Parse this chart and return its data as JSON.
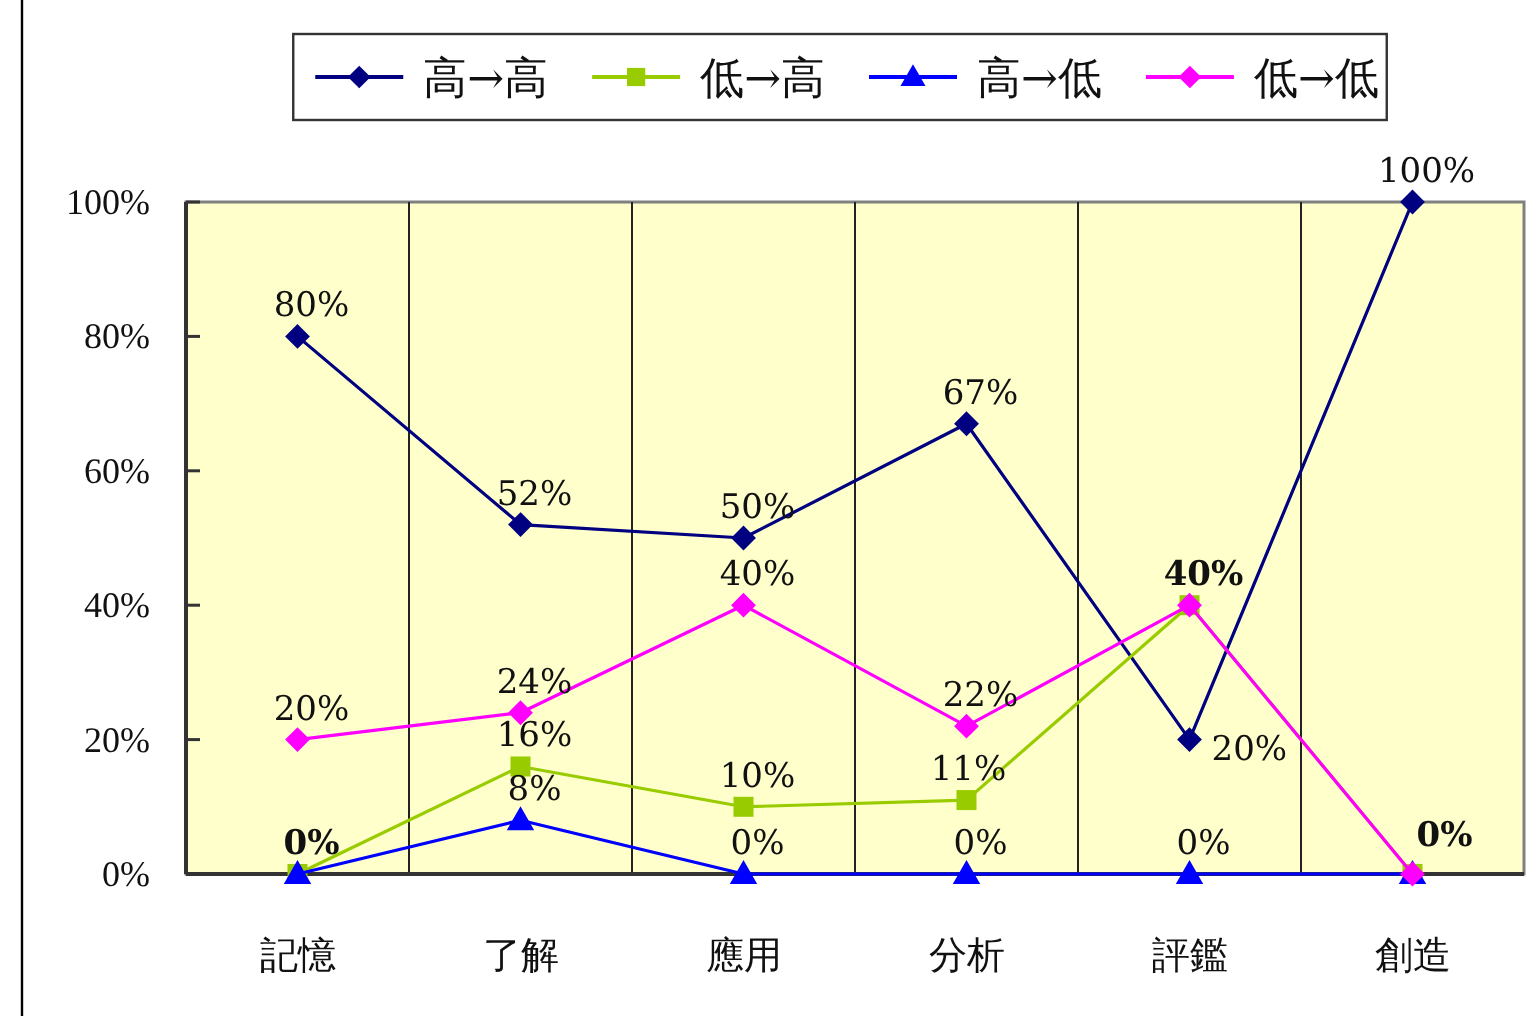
{
  "chart_data": {
    "type": "line",
    "categories": [
      "記憶",
      "了解",
      "應用",
      "分析",
      "評鑑",
      "創造"
    ],
    "series": [
      {
        "name": "高→高",
        "color": "#000080",
        "marker": "diamond",
        "values": [
          80,
          52,
          50,
          67,
          20,
          100
        ],
        "value_labels": [
          "80%",
          "52%",
          "50%",
          "67%",
          "20%",
          "100%"
        ]
      },
      {
        "name": "低→高",
        "color": "#99cc00",
        "marker": "square",
        "values": [
          0,
          16,
          10,
          11,
          40,
          0
        ],
        "value_labels": [
          "0%",
          "16%",
          "10%",
          "11%",
          "40%",
          "0%"
        ]
      },
      {
        "name": "高→低",
        "color": "#0000ff",
        "marker": "triangle",
        "values": [
          0,
          8,
          0,
          0,
          0,
          0
        ],
        "value_labels": [
          null,
          "8%",
          "0%",
          "0%",
          "0%",
          null
        ]
      },
      {
        "name": "低→低",
        "color": "#ff00ff",
        "marker": "diamond",
        "values": [
          20,
          24,
          40,
          22,
          40,
          0
        ],
        "value_labels": [
          "20%",
          "24%",
          "40%",
          "22%",
          null,
          null
        ]
      }
    ],
    "ylim": [
      0,
      100
    ],
    "yticks": [
      {
        "value": 0,
        "label": "0%"
      },
      {
        "value": 20,
        "label": "20%"
      },
      {
        "value": 40,
        "label": "40%"
      },
      {
        "value": 60,
        "label": "60%"
      },
      {
        "value": 80,
        "label": "80%"
      },
      {
        "value": 100,
        "label": "100%"
      }
    ],
    "grid": "x",
    "legend": "top"
  }
}
